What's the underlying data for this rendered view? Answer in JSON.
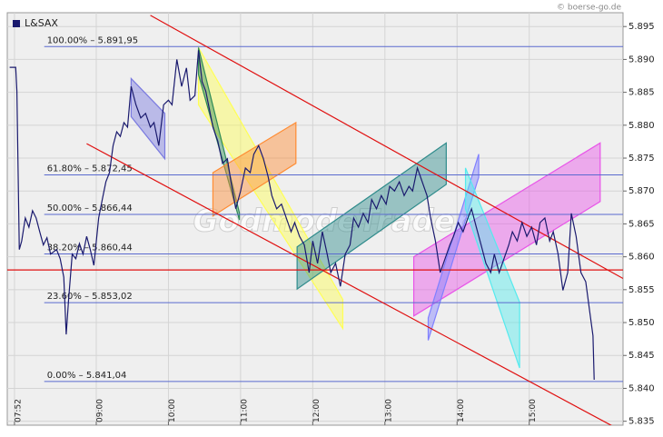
{
  "chart_data": {
    "type": "line",
    "source": "© boerse-go.de",
    "watermark": "GodmodeTrader",
    "xlim": [
      466,
      978
    ],
    "ylim": [
      5.8344,
      5.8971
    ],
    "xticks": [
      {
        "value": 472,
        "label": "07:52"
      },
      {
        "value": 540,
        "label": "09:00"
      },
      {
        "value": 600,
        "label": "10:00"
      },
      {
        "value": 660,
        "label": "11:00"
      },
      {
        "value": 720,
        "label": "12:00"
      },
      {
        "value": 780,
        "label": "13:00"
      },
      {
        "value": 840,
        "label": "14:00"
      },
      {
        "value": 900,
        "label": "15:00"
      }
    ],
    "yticks": [
      5.895,
      {
        "value": 5.89,
        "label": "5.890"
      },
      5.885,
      {
        "value": 5.88,
        "label": "5.880"
      },
      5.875,
      {
        "value": 5.87,
        "label": "5.870"
      },
      5.865,
      {
        "value": 5.86,
        "label": "5.860"
      },
      5.855,
      {
        "value": 5.85,
        "label": "5.850"
      },
      5.845,
      {
        "value": 5.84,
        "label": "5.840"
      },
      5.835
    ],
    "grid": true,
    "legend": "top-left",
    "series": [
      {
        "name": "L&SAX",
        "color": "#1a1a6e",
        "x": [
          468,
          473,
          474,
          476,
          478,
          481,
          484,
          487,
          490,
          493,
          496,
          499,
          502,
          507,
          510,
          513,
          515,
          517,
          520,
          523,
          526,
          529,
          532,
          535,
          538,
          542,
          545,
          548,
          551,
          554,
          557,
          560,
          563,
          566,
          569,
          573,
          577,
          581,
          585,
          588,
          592,
          596,
          600,
          603,
          607,
          611,
          615,
          618,
          622,
          625,
          628,
          631,
          634,
          637,
          641,
          645,
          649,
          652,
          656,
          660,
          664,
          668,
          671,
          675,
          679,
          683,
          686,
          690,
          694,
          698,
          702,
          705,
          709,
          713,
          717,
          720,
          724,
          728,
          732,
          735,
          739,
          743,
          747,
          751,
          754,
          758,
          762,
          766,
          769,
          773,
          777,
          781,
          784,
          788,
          792,
          796,
          800,
          803,
          807,
          811,
          815,
          818,
          822,
          826,
          830,
          834,
          837,
          841,
          845,
          849,
          852,
          856,
          860,
          864,
          868,
          871,
          875,
          879,
          883,
          886,
          890,
          894,
          898,
          902,
          906,
          909,
          913,
          917,
          920,
          924,
          928,
          932,
          935,
          939,
          943,
          947,
          951,
          953,
          954
        ],
        "values": [
          5.8888,
          5.8888,
          5.8852,
          5.8611,
          5.8624,
          5.8659,
          5.8645,
          5.867,
          5.8659,
          5.8638,
          5.8618,
          5.8629,
          5.8604,
          5.8611,
          5.8597,
          5.8569,
          5.8482,
          5.8535,
          5.8604,
          5.8597,
          5.862,
          5.8604,
          5.8631,
          5.8611,
          5.8587,
          5.8659,
          5.8687,
          5.8714,
          5.8728,
          5.8769,
          5.879,
          5.8783,
          5.8804,
          5.8797,
          5.8859,
          5.8831,
          5.8811,
          5.8818,
          5.8797,
          5.8804,
          5.8769,
          5.8831,
          5.8838,
          5.8831,
          5.89,
          5.8859,
          5.8887,
          5.8838,
          5.8845,
          5.8914,
          5.8866,
          5.8852,
          5.8825,
          5.8797,
          5.8776,
          5.8742,
          5.8749,
          5.8714,
          5.8673,
          5.87,
          5.8735,
          5.8728,
          5.8756,
          5.8769,
          5.8749,
          5.8721,
          5.8693,
          5.8673,
          5.868,
          5.8659,
          5.8638,
          5.8652,
          5.8631,
          5.8618,
          5.8576,
          5.8624,
          5.859,
          5.8638,
          5.8604,
          5.8576,
          5.859,
          5.8555,
          5.8604,
          5.8618,
          5.8659,
          5.8645,
          5.8666,
          5.8652,
          5.8687,
          5.8673,
          5.8693,
          5.868,
          5.8707,
          5.87,
          5.8714,
          5.8693,
          5.8707,
          5.87,
          5.8735,
          5.8714,
          5.8693,
          5.8659,
          5.8624,
          5.8576,
          5.8597,
          5.8618,
          5.8631,
          5.8652,
          5.8638,
          5.8659,
          5.8673,
          5.8645,
          5.8618,
          5.859,
          5.8576,
          5.8604,
          5.8576,
          5.8597,
          5.8618,
          5.8638,
          5.8624,
          5.8652,
          5.8631,
          5.8645,
          5.8618,
          5.8652,
          5.8659,
          5.8624,
          5.8638,
          5.8604,
          5.8549,
          5.8576,
          5.8666,
          5.8631,
          5.8576,
          5.8562,
          5.8507,
          5.848,
          5.8413
        ]
      }
    ],
    "levels": [
      {
        "value": 5.89195,
        "label": "100.00% – 5.891,95"
      },
      {
        "value": 5.87245,
        "label": "61.80% – 5.872,45"
      },
      {
        "value": 5.86644,
        "label": "50.00% – 5.866,44"
      },
      {
        "value": 5.86044,
        "label": "38.20% – 5.860,44"
      },
      {
        "value": 5.85302,
        "label": "23.60% – 5.853,02"
      },
      {
        "value": 5.84104,
        "label": "0.00% – 5.841,04"
      }
    ],
    "level_color": "#5a6acf",
    "trend_color": "#e01010",
    "trendlines": [
      {
        "x": [
          585,
          978
        ],
        "y": [
          5.8967,
          5.8567
        ]
      },
      {
        "x": [
          532,
          970
        ],
        "y": [
          5.8772,
          5.8342
        ]
      },
      {
        "x": [
          466,
          978
        ],
        "y": [
          5.858,
          5.858
        ]
      }
    ],
    "channels": [
      {
        "color": "#7a7ae0",
        "x": [
          569,
          597
        ],
        "upper": [
          5.8871,
          5.8818
        ],
        "lower": [
          5.8813,
          5.8749
        ]
      },
      {
        "color": "#ffff55",
        "x": [
          625,
          745
        ],
        "upper": [
          5.8918,
          5.8535
        ],
        "lower": [
          5.8831,
          5.8491
        ]
      },
      {
        "color": "#2e8b57",
        "x": [
          625,
          659
        ],
        "upper": [
          5.8918,
          5.8667
        ],
        "lower": [
          5.8877,
          5.8656
        ]
      },
      {
        "color": "#ff8c33",
        "x": [
          637,
          706
        ],
        "upper": [
          5.8728,
          5.8804
        ],
        "lower": [
          5.8662,
          5.8742
        ]
      },
      {
        "color": "#2e8b8b",
        "x": [
          707,
          831
        ],
        "upper": [
          5.8615,
          5.8773
        ],
        "lower": [
          5.8551,
          5.871
        ]
      },
      {
        "color": "#e855e8",
        "x": [
          804,
          959
        ],
        "upper": [
          5.86,
          5.8773
        ],
        "lower": [
          5.851,
          5.8684
        ]
      },
      {
        "color": "#8080ff",
        "x": [
          816,
          858
        ],
        "upper": [
          5.8507,
          5.8756
        ],
        "lower": [
          5.8473,
          5.8721
        ]
      },
      {
        "color": "#55eaee",
        "x": [
          847,
          892
        ],
        "upper": [
          5.8735,
          5.8531
        ],
        "lower": [
          5.8673,
          5.8431
        ]
      }
    ]
  }
}
